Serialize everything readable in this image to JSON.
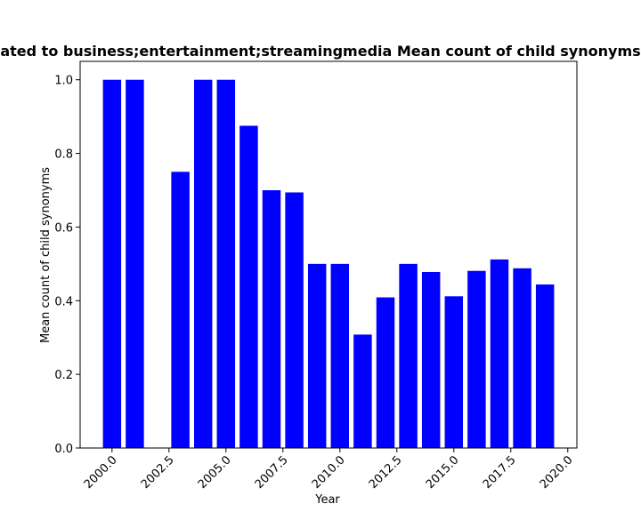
{
  "chart_data": {
    "type": "bar",
    "title": "ated to business;entertainment;streamingmedia Mean count of child synonyms",
    "xlabel": "Year",
    "ylabel": "Mean count of child synonyms",
    "x": [
      2000,
      2001,
      2003,
      2004,
      2005,
      2006,
      2007,
      2008,
      2009,
      2010,
      2011,
      2012,
      2013,
      2014,
      2015,
      2016,
      2017,
      2018,
      2019
    ],
    "values": [
      1.0,
      1.0,
      0.75,
      1.0,
      1.0,
      0.875,
      0.7,
      0.694,
      0.5,
      0.5,
      0.308,
      0.409,
      0.5,
      0.478,
      0.412,
      0.481,
      0.512,
      0.488,
      0.444
    ],
    "xlim": [
      1998.6,
      2020.4
    ],
    "ylim": [
      0,
      1.05
    ],
    "xticks": [
      2000.0,
      2002.5,
      2005.0,
      2007.5,
      2010.0,
      2012.5,
      2015.0,
      2017.5,
      2020.0
    ],
    "xtick_labels": [
      "2000.0",
      "2002.5",
      "2005.0",
      "2007.5",
      "2010.0",
      "2012.5",
      "2015.0",
      "2017.5",
      "2020.0"
    ],
    "yticks": [
      0.0,
      0.2,
      0.4,
      0.6,
      0.8,
      1.0
    ],
    "ytick_labels": [
      "0.0",
      "0.2",
      "0.4",
      "0.6",
      "0.8",
      "1.0"
    ],
    "bar_color": "#0000ff",
    "grid": false
  }
}
